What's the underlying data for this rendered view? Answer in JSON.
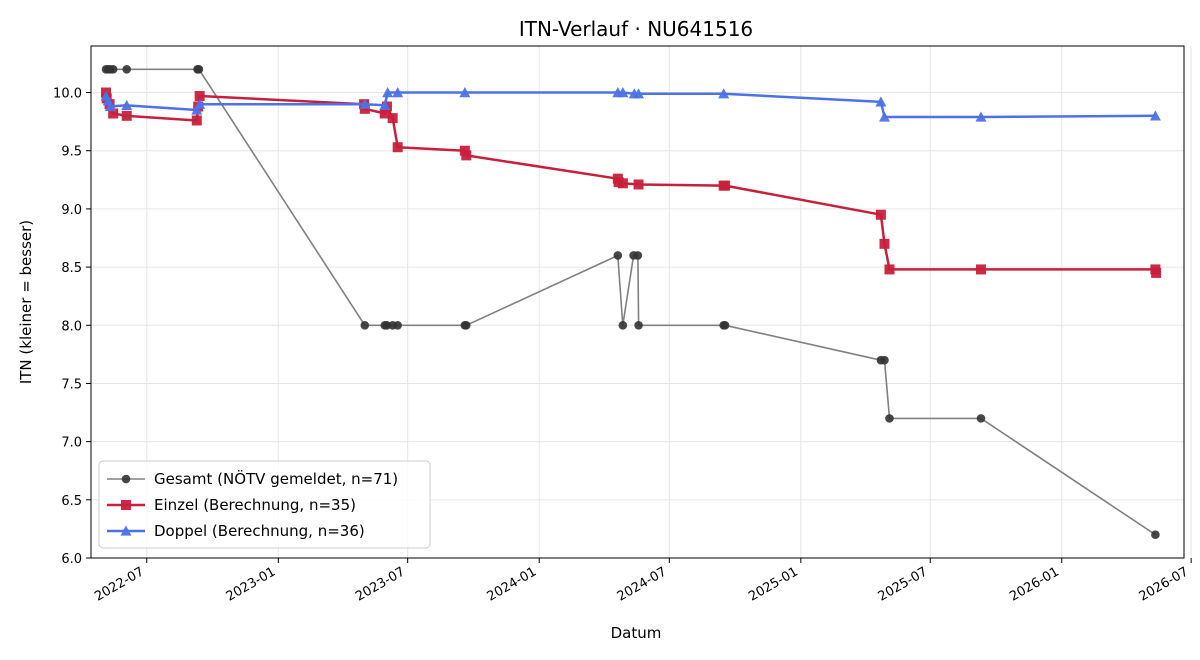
{
  "chart_data": {
    "type": "line",
    "title": "ITN-Verlauf · NU641516",
    "xlabel": "Datum",
    "ylabel": "ITN  (kleiner = besser)",
    "ylim": [
      6.0,
      10.4
    ],
    "xlim": [
      "2022-04-14",
      "2026-06-21"
    ],
    "grid": true,
    "legend_position": "bottom-left",
    "x_ticks": [
      "2022-07",
      "2023-01",
      "2023-07",
      "2024-01",
      "2024-07",
      "2025-01",
      "2025-07",
      "2026-01",
      "2026-07"
    ],
    "y_ticks": [
      6.0,
      6.5,
      7.0,
      7.5,
      8.0,
      8.5,
      9.0,
      9.5,
      10.0
    ],
    "series": [
      {
        "name": "Gesamt (NÖTV gemeldet, n=71)",
        "color": "#333333",
        "line_color": "#808080",
        "marker": "circle",
        "points": [
          [
            "2022-05-05",
            10.2
          ],
          [
            "2022-05-08",
            10.2
          ],
          [
            "2022-05-11",
            10.2
          ],
          [
            "2022-05-15",
            10.2
          ],
          [
            "2022-06-03",
            10.2
          ],
          [
            "2022-09-10",
            10.2
          ],
          [
            "2022-09-12",
            10.2
          ],
          [
            "2023-05-02",
            8.0
          ],
          [
            "2023-05-30",
            8.0
          ],
          [
            "2023-06-02",
            8.0
          ],
          [
            "2023-06-10",
            8.0
          ],
          [
            "2023-06-17",
            8.0
          ],
          [
            "2023-09-19",
            8.0
          ],
          [
            "2023-09-21",
            8.0
          ],
          [
            "2024-04-20",
            8.6
          ],
          [
            "2024-04-27",
            8.0
          ],
          [
            "2024-05-12",
            8.6
          ],
          [
            "2024-05-18",
            8.6
          ],
          [
            "2024-05-19",
            8.0
          ],
          [
            "2024-09-15",
            8.0
          ],
          [
            "2024-09-17",
            8.0
          ],
          [
            "2025-04-23",
            7.7
          ],
          [
            "2025-04-28",
            7.7
          ],
          [
            "2025-05-05",
            7.2
          ],
          [
            "2025-09-10",
            7.2
          ],
          [
            "2026-05-12",
            6.2
          ]
        ]
      },
      {
        "name": "Einzel (Berechnung, n=35)",
        "color": "#c8203a",
        "line_color": "#c8203a",
        "marker": "square",
        "points": [
          [
            "2022-05-05",
            10.0
          ],
          [
            "2022-05-06",
            9.95
          ],
          [
            "2022-05-10",
            9.9
          ],
          [
            "2022-05-15",
            9.82
          ],
          [
            "2022-06-03",
            9.8
          ],
          [
            "2022-09-09",
            9.76
          ],
          [
            "2022-09-11",
            9.88
          ],
          [
            "2022-09-13",
            9.97
          ],
          [
            "2023-05-01",
            9.9
          ],
          [
            "2023-05-02",
            9.86
          ],
          [
            "2023-05-30",
            9.82
          ],
          [
            "2023-06-02",
            9.88
          ],
          [
            "2023-06-10",
            9.78
          ],
          [
            "2023-06-17",
            9.53
          ],
          [
            "2023-09-19",
            9.5
          ],
          [
            "2023-09-21",
            9.46
          ],
          [
            "2024-04-20",
            9.26
          ],
          [
            "2024-04-21",
            9.23
          ],
          [
            "2024-04-27",
            9.22
          ],
          [
            "2024-05-19",
            9.21
          ],
          [
            "2024-09-15",
            9.2
          ],
          [
            "2024-09-17",
            9.2
          ],
          [
            "2025-04-23",
            8.95
          ],
          [
            "2025-04-28",
            8.7
          ],
          [
            "2025-05-05",
            8.48
          ],
          [
            "2025-09-10",
            8.48
          ],
          [
            "2026-05-12",
            8.48
          ],
          [
            "2026-05-13",
            8.45
          ]
        ]
      },
      {
        "name": "Doppel (Berechnung, n=36)",
        "color": "#4d72e8",
        "line_color": "#4d72e8",
        "marker": "triangle",
        "points": [
          [
            "2022-05-05",
            9.97
          ],
          [
            "2022-05-08",
            9.93
          ],
          [
            "2022-05-11",
            9.88
          ],
          [
            "2022-06-03",
            9.89
          ],
          [
            "2022-09-09",
            9.85
          ],
          [
            "2022-09-13",
            9.9
          ],
          [
            "2023-05-02",
            9.9
          ],
          [
            "2023-05-30",
            9.89
          ],
          [
            "2023-06-03",
            10.0
          ],
          [
            "2023-06-17",
            10.0
          ],
          [
            "2023-09-19",
            10.0
          ],
          [
            "2024-04-20",
            10.0
          ],
          [
            "2024-04-27",
            10.0
          ],
          [
            "2024-05-13",
            9.99
          ],
          [
            "2024-05-19",
            9.99
          ],
          [
            "2024-09-15",
            9.99
          ],
          [
            "2025-04-23",
            9.92
          ],
          [
            "2025-04-28",
            9.79
          ],
          [
            "2025-09-10",
            9.79
          ],
          [
            "2026-05-12",
            9.8
          ]
        ]
      }
    ]
  }
}
